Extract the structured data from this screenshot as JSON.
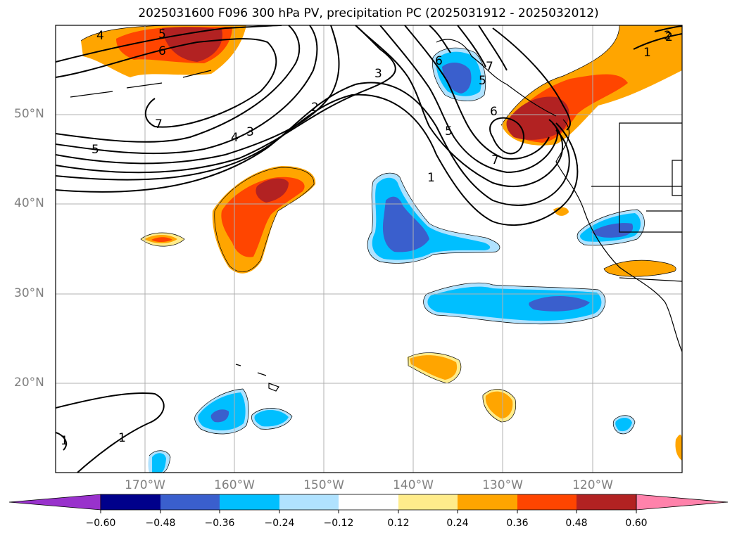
{
  "title": "2025031600 F096 300 hPa PV, precipitation PC (2025031912 - 2025032012)",
  "lat_labels": [
    "50°N",
    "40°N",
    "30°N",
    "20°N"
  ],
  "lon_labels": [
    "170°W",
    "160°W",
    "150°W",
    "140°W",
    "130°W",
    "120°W"
  ],
  "contour_labels": [
    "4",
    "5",
    "6",
    "7",
    "2",
    "3",
    "4",
    "5",
    "3",
    "2",
    "1",
    "6",
    "5",
    "7",
    "6",
    "5",
    "7",
    "1",
    "2",
    "1",
    "1",
    "2"
  ],
  "colorbar": {
    "ticks": [
      "−0.60",
      "−0.48",
      "−0.36",
      "−0.24",
      "−0.12",
      "0.12",
      "0.24",
      "0.36",
      "0.48",
      "0.60"
    ],
    "colors": {
      "under": "#9932cc",
      "n060": "#00008b",
      "n048": "#3a5fcd",
      "n036": "#00bfff",
      "n024": "#b0e2ff",
      "zero": "#ffffff",
      "p012": "#ffec8b",
      "p024": "#ffa500",
      "p036": "#ff4500",
      "p048": "#b22222",
      "over": "#ff82ab"
    }
  }
}
